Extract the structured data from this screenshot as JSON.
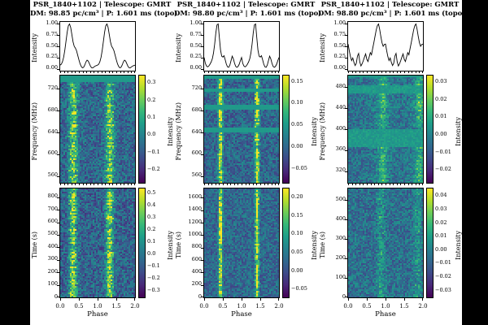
{
  "figure_bg": "#000000",
  "panel_bg": "#ffffff",
  "chart_data": {
    "type": "heatmap",
    "colormap": "viridis",
    "colormap_stops": [
      "#440154",
      "#482878",
      "#3e4a89",
      "#31688e",
      "#26828e",
      "#1f9e89",
      "#35b779",
      "#6dcd59",
      "#b4de2c",
      "#fde725"
    ],
    "x_axis": {
      "label": "Phase",
      "range": [
        0,
        2
      ],
      "ticks": [
        [
          0,
          "0.0"
        ],
        [
          0.5,
          "0.5"
        ],
        [
          1,
          "1.0"
        ],
        [
          1.5,
          "1.5"
        ],
        [
          2,
          "2.0"
        ]
      ]
    },
    "columns": [
      {
        "title_line1": "PSR_1840+1102  |  Telescope: GMRT",
        "title_line2": "DM: 98.85 pc/cm³  |  P: 1.601 ms (topo)",
        "profile": {
          "type": "line",
          "ylabel": "Intensity",
          "yrange": [
            -0.045,
            1.045
          ],
          "yticks": [
            [
              1.0,
              "1.00"
            ],
            [
              0.75,
              "0.75"
            ],
            [
              0.5,
              "0.50"
            ],
            [
              0.25,
              "0.25"
            ],
            [
              0.0,
              "0.00"
            ]
          ],
          "periods_shown": 2,
          "period_values": [
            0.08,
            0.1,
            0.16,
            0.26,
            0.42,
            0.62,
            0.82,
            0.96,
            1.0,
            0.92,
            0.76,
            0.6,
            0.5,
            0.46,
            0.4,
            0.3,
            0.2,
            0.11,
            0.05,
            0.02,
            0.03,
            0.08,
            0.15,
            0.19,
            0.17,
            0.11,
            0.05,
            0.02,
            0.02,
            0.04,
            0.06,
            0.07
          ]
        },
        "freq_map": {
          "type": "heatmap",
          "ylabel": "Frequency (MHz)",
          "yrange": [
            548,
            744
          ],
          "yticks": [
            [
              720,
              "720"
            ],
            [
              680,
              "680"
            ],
            [
              640,
              "640"
            ],
            [
              600,
              "600"
            ],
            [
              560,
              "560"
            ]
          ],
          "colorbar": {
            "label": "Intensity",
            "range": [
              -0.28,
              0.345
            ],
            "ticks": [
              [
                0.3,
                "0.3"
              ],
              [
                0.2,
                "0.2"
              ],
              [
                0.1,
                "0.1"
              ],
              [
                0.0,
                "0.0"
              ],
              [
                -0.1,
                "−0.1"
              ],
              [
                -0.2,
                "−0.2"
              ]
            ]
          },
          "noise": {
            "seed": 11,
            "base": 0.33,
            "amp": 0.16
          },
          "bright_phase_bands": [
            {
              "center": 0.168,
              "width": 0.042,
              "amp": 0.46
            },
            {
              "center": 0.668,
              "width": 0.042,
              "amp": 0.46
            }
          ],
          "flagged_rows": [
            {
              "from": 0.0,
              "to": 0.055,
              "noise": 0.012
            }
          ]
        },
        "time_map": {
          "type": "heatmap",
          "ylabel": "Time (s)",
          "yrange": [
            0,
            870
          ],
          "yticks": [
            [
              800,
              "800"
            ],
            [
              700,
              "700"
            ],
            [
              600,
              "600"
            ],
            [
              500,
              "500"
            ],
            [
              400,
              "400"
            ],
            [
              300,
              "300"
            ],
            [
              200,
              "200"
            ],
            [
              100,
              "100"
            ],
            [
              0,
              "0"
            ]
          ],
          "colorbar": {
            "label": "Intensity",
            "range": [
              -0.36,
              0.54
            ],
            "ticks": [
              [
                0.5,
                "0.5"
              ],
              [
                0.4,
                "0.4"
              ],
              [
                0.3,
                "0.3"
              ],
              [
                0.2,
                "0.2"
              ],
              [
                0.1,
                "0.1"
              ],
              [
                0.0,
                "0.0"
              ],
              [
                -0.1,
                "−0.1"
              ],
              [
                -0.2,
                "−0.2"
              ],
              [
                -0.3,
                "−0.3"
              ]
            ]
          },
          "noise": {
            "seed": 12,
            "base": 0.32,
            "amp": 0.17
          },
          "bright_phase_bands": [
            {
              "center": 0.165,
              "width": 0.036,
              "amp": 0.52
            },
            {
              "center": 0.665,
              "width": 0.036,
              "amp": 0.52
            }
          ],
          "flagged_rows": []
        }
      },
      {
        "title_line1": "PSR_1840+1102  |  Telescope: GMRT",
        "title_line2": "DM: 98.80 pc/cm³  |  P: 1.601 ms (topo)",
        "profile": {
          "type": "line",
          "ylabel": "Intensity",
          "yrange": [
            -0.045,
            1.045
          ],
          "yticks": [
            [
              1.0,
              "1.00"
            ],
            [
              0.75,
              "0.75"
            ],
            [
              0.5,
              "0.50"
            ],
            [
              0.25,
              "0.25"
            ],
            [
              0.0,
              "0.00"
            ]
          ],
          "periods_shown": 2,
          "period_values": [
            0.25,
            0.12,
            0.06,
            0.04,
            0.06,
            0.1,
            0.15,
            0.22,
            0.35,
            0.55,
            0.8,
            0.98,
            1.0,
            0.7,
            0.42,
            0.28,
            0.26,
            0.29,
            0.2,
            0.1,
            0.04,
            0.03,
            0.08,
            0.18,
            0.28,
            0.22,
            0.12,
            0.05,
            0.03,
            0.05,
            0.1,
            0.18
          ]
        },
        "freq_map": {
          "type": "heatmap",
          "ylabel": "Frequency (MHz)",
          "yrange": [
            548,
            744
          ],
          "yticks": [
            [
              720,
              "720"
            ],
            [
              680,
              "680"
            ],
            [
              640,
              "640"
            ],
            [
              600,
              "600"
            ],
            [
              560,
              "560"
            ]
          ],
          "colorbar": {
            "label": "Intensity",
            "range": [
              -0.085,
              0.165
            ],
            "ticks": [
              [
                0.15,
                "0.15"
              ],
              [
                0.1,
                "0.10"
              ],
              [
                0.05,
                "0.05"
              ],
              [
                0.0,
                "0.00"
              ],
              [
                -0.05,
                "−0.05"
              ]
            ]
          },
          "noise": {
            "seed": 21,
            "base": 0.33,
            "amp": 0.15
          },
          "bright_phase_bands": [
            {
              "center": 0.212,
              "width": 0.02,
              "amp": 0.66
            },
            {
              "center": 0.712,
              "width": 0.02,
              "amp": 0.66
            }
          ],
          "flagged_rows": [
            {
              "from": 0.0,
              "to": 0.022,
              "noise": 0.012
            },
            {
              "from": 0.112,
              "to": 0.15,
              "noise": 0.012
            },
            {
              "from": 0.265,
              "to": 0.315,
              "noise": 0.012
            },
            {
              "from": 0.48,
              "to": 0.532,
              "noise": 0.012
            }
          ]
        },
        "time_map": {
          "type": "heatmap",
          "ylabel": "Time (s)",
          "yrange": [
            0,
            1750
          ],
          "yticks": [
            [
              1600,
              "1600"
            ],
            [
              1400,
              "1400"
            ],
            [
              1200,
              "1200"
            ],
            [
              1000,
              "1000"
            ],
            [
              800,
              "800"
            ],
            [
              600,
              "600"
            ],
            [
              400,
              "400"
            ],
            [
              200,
              "200"
            ],
            [
              0,
              "0"
            ]
          ],
          "colorbar": {
            "label": "Intensity",
            "range": [
              -0.075,
              0.225
            ],
            "ticks": [
              [
                0.2,
                "0.20"
              ],
              [
                0.15,
                "0.15"
              ],
              [
                0.1,
                "0.10"
              ],
              [
                0.05,
                "0.05"
              ],
              [
                0.0,
                "0.00"
              ],
              [
                -0.05,
                "−0.05"
              ]
            ]
          },
          "noise": {
            "seed": 22,
            "base": 0.34,
            "amp": 0.14
          },
          "bright_phase_bands": [
            {
              "center": 0.212,
              "width": 0.016,
              "amp": 0.72
            },
            {
              "center": 0.712,
              "width": 0.016,
              "amp": 0.72
            }
          ],
          "flagged_rows": []
        }
      },
      {
        "title_line1": "PSR_1840+1102  |  Telescope: GMRT",
        "title_line2": "DM: 98.80 pc/cm³  |  P: 1.601 ms (topo)",
        "profile": {
          "type": "line",
          "ylabel": "Intensity",
          "yrange": [
            -0.045,
            1.045
          ],
          "yticks": [
            [
              1.0,
              "1.00"
            ],
            [
              0.75,
              "0.75"
            ],
            [
              0.5,
              "0.50"
            ],
            [
              0.25,
              "0.25"
            ],
            [
              0.0,
              "0.00"
            ]
          ],
          "periods_shown": 2,
          "period_values": [
            0.55,
            0.4,
            0.27,
            0.18,
            0.24,
            0.14,
            0.07,
            0.12,
            0.28,
            0.34,
            0.15,
            0.06,
            0.11,
            0.18,
            0.26,
            0.33,
            0.21,
            0.16,
            0.26,
            0.36,
            0.31,
            0.45,
            0.58,
            0.72,
            0.86,
            0.96,
            1.0,
            0.88,
            0.72,
            0.58,
            0.5,
            0.54
          ]
        },
        "freq_map": {
          "type": "heatmap",
          "ylabel": "Frequency (MHz)",
          "yrange": [
            298,
            502
          ],
          "yticks": [
            [
              480,
              "480"
            ],
            [
              440,
              "440"
            ],
            [
              400,
              "400"
            ],
            [
              360,
              "360"
            ],
            [
              320,
              "320"
            ]
          ],
          "colorbar": {
            "label": "Intensity",
            "range": [
              -0.028,
              0.034
            ],
            "ticks": [
              [
                0.03,
                "0.03"
              ],
              [
                0.02,
                "0.02"
              ],
              [
                0.01,
                "0.01"
              ],
              [
                0.0,
                "0.00"
              ],
              [
                -0.01,
                "−0.01"
              ],
              [
                -0.02,
                "−0.02"
              ]
            ]
          },
          "noise": {
            "seed": 31,
            "base": 0.37,
            "amp": 0.14
          },
          "bright_phase_bands": [
            {
              "center": 0.465,
              "width": 0.035,
              "amp": 0.2
            },
            {
              "center": 0.965,
              "width": 0.035,
              "amp": 0.2
            },
            {
              "center": 0.45,
              "width": 0.1,
              "amp": 0.08
            },
            {
              "center": 0.95,
              "width": 0.1,
              "amp": 0.08
            }
          ],
          "flagged_rows": [
            {
              "from": 0.0,
              "to": 0.012,
              "noise": 0.01
            },
            {
              "from": 0.08,
              "to": 0.165,
              "noise": 0.05
            },
            {
              "from": 0.5,
              "to": 0.67,
              "noise": 0.05
            }
          ]
        },
        "time_map": {
          "type": "heatmap",
          "ylabel": "Time (s)",
          "yrange": [
            0,
            560
          ],
          "yticks": [
            [
              500,
              "500"
            ],
            [
              400,
              "400"
            ],
            [
              300,
              "300"
            ],
            [
              200,
              "200"
            ],
            [
              100,
              "100"
            ],
            [
              0,
              "0"
            ]
          ],
          "colorbar": {
            "label": "Intensity",
            "range": [
              -0.036,
              0.046
            ],
            "ticks": [
              [
                0.04,
                "0.04"
              ],
              [
                0.03,
                "0.03"
              ],
              [
                0.02,
                "0.02"
              ],
              [
                0.01,
                "0.01"
              ],
              [
                0.0,
                "0.00"
              ],
              [
                -0.01,
                "−0.01"
              ],
              [
                -0.02,
                "−0.02"
              ],
              [
                -0.03,
                "−0.03"
              ]
            ]
          },
          "noise": {
            "seed": 32,
            "base": 0.37,
            "amp": 0.15
          },
          "bright_phase_bands": [
            {
              "center": 0.44,
              "width": 0.04,
              "amp": 0.15
            },
            {
              "center": 0.94,
              "width": 0.04,
              "amp": 0.15
            }
          ],
          "flagged_rows": []
        }
      }
    ]
  }
}
